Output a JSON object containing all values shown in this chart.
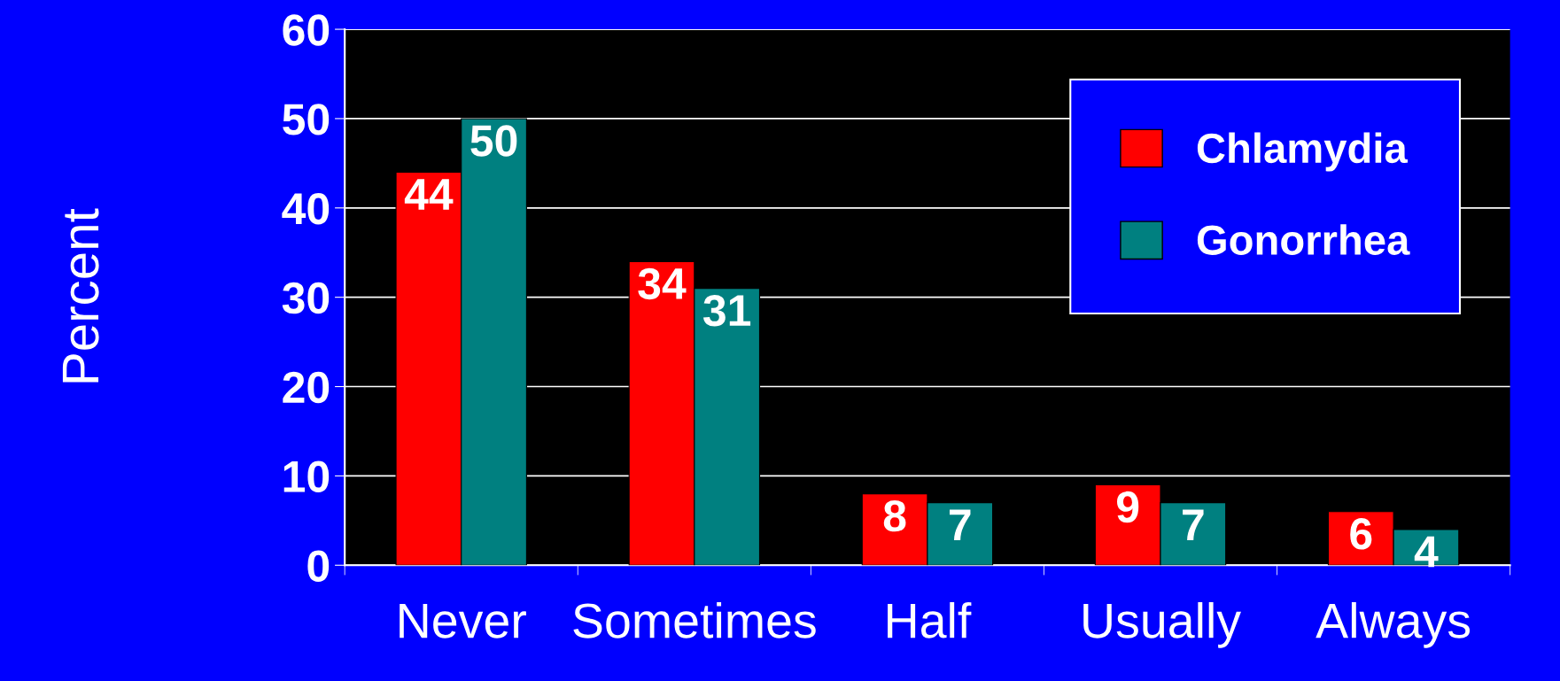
{
  "chart_data": {
    "type": "bar",
    "ylabel": "Percent",
    "categories": [
      "Never",
      "Sometimes",
      "Half",
      "Usually",
      "Always"
    ],
    "series": [
      {
        "name": "Chlamydia",
        "color": "#ff0000",
        "values": [
          44,
          34,
          8,
          9,
          6
        ]
      },
      {
        "name": "Gonorrhea",
        "color": "#008080",
        "values": [
          50,
          31,
          7,
          7,
          4
        ]
      }
    ],
    "ylim": [
      0,
      60
    ],
    "yticks": [
      0,
      10,
      20,
      30,
      40,
      50,
      60
    ],
    "grid": "y",
    "legend": "top right",
    "data_labels": true
  }
}
